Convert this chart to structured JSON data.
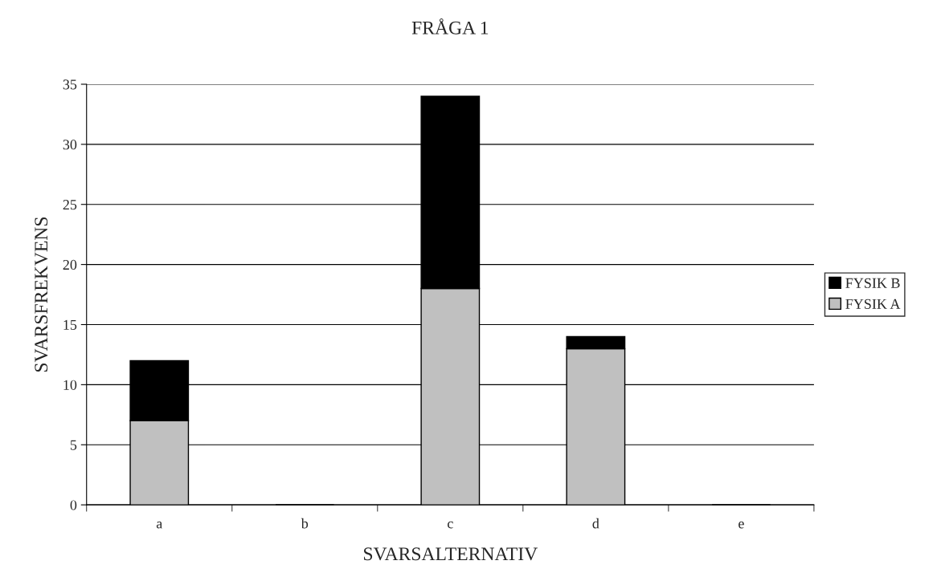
{
  "chart_data": {
    "type": "bar",
    "title": "FRÅGA 1",
    "xlabel": "SVARSALTERNATIV",
    "ylabel": "SVARSFREKVENS",
    "categories": [
      "a",
      "b",
      "c",
      "d",
      "e"
    ],
    "stacked": true,
    "series": [
      {
        "name": "FYSIK A",
        "color": "#c0c0c0",
        "values": [
          7,
          0,
          18,
          13,
          0
        ]
      },
      {
        "name": "FYSIK B",
        "color": "#000000",
        "values": [
          5,
          0,
          16,
          1,
          0
        ]
      }
    ],
    "ylim": [
      0,
      35
    ],
    "yticks": [
      0,
      5,
      10,
      15,
      20,
      25,
      30,
      35
    ],
    "grid": "y",
    "legend": "right"
  }
}
